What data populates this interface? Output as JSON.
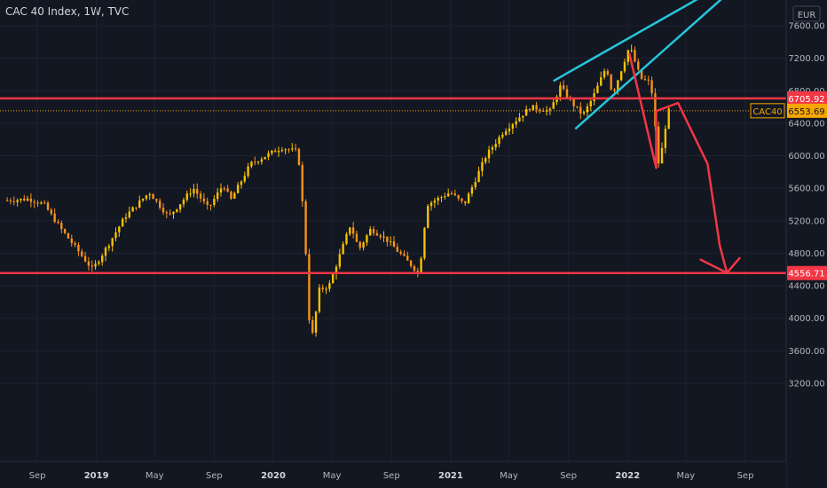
{
  "header": {
    "title": "CAC 40 Index, 1W, TVC"
  },
  "chart_data": {
    "type": "candlestick",
    "symbol": "CAC40",
    "title": "CAC 40 Index, 1W, TVC",
    "currency": "EUR",
    "y_range": [
      3180,
      8000
    ],
    "y_ticks": [
      "7600.00",
      "7200.00",
      "6800.00",
      "6400.00",
      "6000.00",
      "5600.00",
      "5200.00",
      "4800.00",
      "4400.00",
      "4000.00",
      "3600.00",
      "3200.00"
    ],
    "x_ticks": [
      {
        "label": "Sep",
        "bold": false
      },
      {
        "label": "2019",
        "bold": true
      },
      {
        "label": "May",
        "bold": false
      },
      {
        "label": "Sep",
        "bold": false
      },
      {
        "label": "2020",
        "bold": true
      },
      {
        "label": "May",
        "bold": false
      },
      {
        "label": "Sep",
        "bold": false
      },
      {
        "label": "2021",
        "bold": true
      },
      {
        "label": "May",
        "bold": false
      },
      {
        "label": "Sep",
        "bold": false
      },
      {
        "label": "2022",
        "bold": true
      },
      {
        "label": "May",
        "bold": false
      },
      {
        "label": "Sep",
        "bold": false
      }
    ],
    "horizontal_levels": [
      {
        "value": 6705.92,
        "label": "6705.92",
        "color": "#f23645"
      },
      {
        "value": 4556.71,
        "label": "4556.71",
        "color": "#f23645"
      }
    ],
    "current_price": {
      "value": 6553.69,
      "label": "6553.69",
      "symbol_label": "CAC40",
      "color": "#f7a600"
    },
    "series_anchors": [
      [
        "2018-07-01",
        5450
      ],
      [
        "2018-08-15",
        5470
      ],
      [
        "2018-09-15",
        5400
      ],
      [
        "2018-10-20",
        5100
      ],
      [
        "2018-12-24",
        4600
      ],
      [
        "2019-01-25",
        4900
      ],
      [
        "2019-03-01",
        5250
      ],
      [
        "2019-04-20",
        5550
      ],
      [
        "2019-05-30",
        5250
      ],
      [
        "2019-07-20",
        5600
      ],
      [
        "2019-08-20",
        5350
      ],
      [
        "2019-09-20",
        5650
      ],
      [
        "2019-10-05",
        5450
      ],
      [
        "2019-11-15",
        5900
      ],
      [
        "2020-01-17",
        6100
      ],
      [
        "2020-02-21",
        6050
      ],
      [
        "2020-03-05",
        5150
      ],
      [
        "2020-03-18",
        3650
      ],
      [
        "2020-04-05",
        4350
      ],
      [
        "2020-04-25",
        4400
      ],
      [
        "2020-06-08",
        5150
      ],
      [
        "2020-06-26",
        4850
      ],
      [
        "2020-07-20",
        5100
      ],
      [
        "2020-08-20",
        4980
      ],
      [
        "2020-10-28",
        4550
      ],
      [
        "2020-11-13",
        5400
      ],
      [
        "2020-12-31",
        5550
      ],
      [
        "2021-01-29",
        5400
      ],
      [
        "2021-03-15",
        6000
      ],
      [
        "2021-04-20",
        6300
      ],
      [
        "2021-06-15",
        6600
      ],
      [
        "2021-07-25",
        6550
      ],
      [
        "2021-08-15",
        6850
      ],
      [
        "2021-09-15",
        6600
      ],
      [
        "2021-10-01",
        6500
      ],
      [
        "2021-10-20",
        6700
      ],
      [
        "2021-11-18",
        7100
      ],
      [
        "2021-12-01",
        6750
      ],
      [
        "2022-01-05",
        7350
      ],
      [
        "2022-01-28",
        6950
      ],
      [
        "2022-02-18",
        6900
      ],
      [
        "2022-03-07",
        5850
      ],
      [
        "2022-03-25",
        6550
      ],
      [
        "2022-04-01",
        6553.69
      ]
    ],
    "annotations": {
      "cyan_wedge_lines": [
        {
          "from": [
            "2021-08-01",
            6920
          ],
          "to": [
            "2022-07-15",
            8100
          ]
        },
        {
          "from": [
            "2021-09-15",
            6330
          ],
          "to": [
            "2022-08-15",
            8100
          ]
        }
      ],
      "red_path": [
        [
          "2022-01-05",
          7250
        ],
        [
          "2022-03-01",
          5850
        ],
        [
          "2022-03-01",
          6550
        ],
        [
          "2022-04-15",
          6650
        ],
        [
          "2022-06-15",
          5900
        ],
        [
          "2022-07-10",
          4900
        ],
        [
          "2022-07-25",
          4560
        ]
      ],
      "red_arrowhead": [
        [
          "2022-06-01",
          4720
        ],
        [
          "2022-07-25",
          4560
        ],
        [
          "2022-08-20",
          4740
        ]
      ]
    }
  }
}
